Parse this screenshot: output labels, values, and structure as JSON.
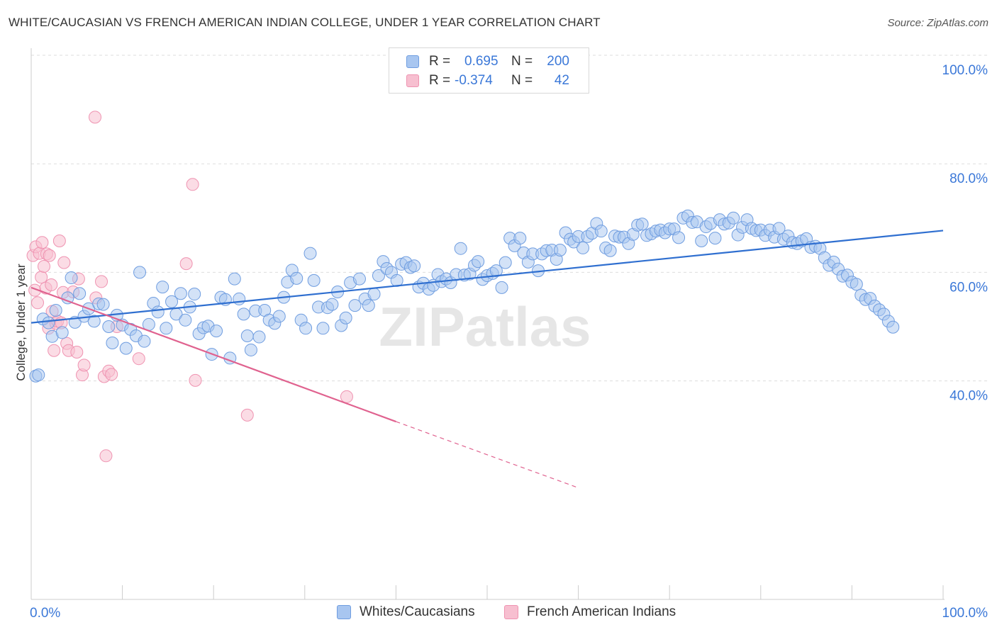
{
  "title": "WHITE/CAUCASIAN VS FRENCH AMERICAN INDIAN COLLEGE, UNDER 1 YEAR CORRELATION CHART",
  "source": "Source: ZipAtlas.com",
  "watermark": "ZIPatlas",
  "legend": {
    "rows": [
      {
        "r_label": "R =",
        "r_value": "0.695",
        "n_label": "N =",
        "n_value": "200"
      },
      {
        "r_label": "R =",
        "r_value": "-0.374",
        "n_label": "N =",
        "n_value": "42"
      }
    ]
  },
  "bottom_legend": [
    "Whites/Caucasians",
    "French American Indians"
  ],
  "colors": {
    "blue_fill": "#a8c6f0",
    "blue_stroke": "#6f9de0",
    "blue_line": "#2f6fd0",
    "pink_fill": "#f7bfd0",
    "pink_stroke": "#ef93b1",
    "pink_line": "#e0628f",
    "tick_label": "#3b78d8",
    "grid": "#dddddd"
  },
  "chart_data": {
    "type": "scatter",
    "title": "WHITE/CAUCASIAN VS FRENCH AMERICAN INDIAN COLLEGE, UNDER 1 YEAR CORRELATION CHART",
    "xlabel": "",
    "ylabel": "College, Under 1 year",
    "xlim": [
      0,
      100
    ],
    "ylim": [
      20,
      100
    ],
    "x_tick_labels": [
      "0.0%",
      "100.0%"
    ],
    "y_ticks": [
      40,
      60,
      80,
      100
    ],
    "y_tick_labels": [
      "40.0%",
      "60.0%",
      "80.0%",
      "100.0%"
    ],
    "grid": true,
    "legend_position": "top-center",
    "series": [
      {
        "name": "Whites/Caucasians",
        "r": 0.695,
        "n": 200,
        "trend": {
          "x0": 0,
          "y0": 50.7,
          "x1": 100,
          "y1": 67.7
        },
        "points": [
          [
            0.5,
            40.9
          ],
          [
            0.8,
            41.1
          ],
          [
            1.3,
            51.4
          ],
          [
            1.9,
            50.7
          ],
          [
            2.3,
            48.2
          ],
          [
            2.7,
            53.0
          ],
          [
            3.4,
            48.9
          ],
          [
            4.0,
            55.3
          ],
          [
            4.4,
            59.0
          ],
          [
            4.8,
            50.8
          ],
          [
            5.3,
            56.1
          ],
          [
            5.8,
            51.9
          ],
          [
            6.3,
            53.3
          ],
          [
            6.9,
            51.0
          ],
          [
            7.4,
            54.2
          ],
          [
            7.9,
            54.1
          ],
          [
            8.5,
            50.0
          ],
          [
            8.9,
            47.0
          ],
          [
            9.4,
            52.1
          ],
          [
            10.0,
            50.3
          ],
          [
            10.4,
            46.0
          ],
          [
            10.9,
            49.5
          ],
          [
            11.5,
            48.3
          ],
          [
            11.9,
            60.0
          ],
          [
            12.4,
            47.3
          ],
          [
            12.9,
            50.4
          ],
          [
            13.4,
            54.3
          ],
          [
            13.9,
            52.7
          ],
          [
            14.4,
            57.3
          ],
          [
            14.8,
            49.7
          ],
          [
            15.4,
            54.6
          ],
          [
            15.9,
            52.3
          ],
          [
            16.4,
            56.1
          ],
          [
            16.9,
            51.2
          ],
          [
            17.4,
            53.6
          ],
          [
            17.9,
            56.0
          ],
          [
            18.4,
            48.7
          ],
          [
            18.9,
            49.8
          ],
          [
            19.4,
            50.1
          ],
          [
            19.8,
            44.9
          ],
          [
            20.3,
            49.2
          ],
          [
            20.8,
            55.4
          ],
          [
            21.3,
            55.0
          ],
          [
            21.8,
            44.2
          ],
          [
            22.3,
            58.8
          ],
          [
            22.8,
            55.1
          ],
          [
            23.3,
            52.3
          ],
          [
            23.7,
            48.3
          ],
          [
            24.1,
            45.7
          ],
          [
            24.6,
            52.9
          ],
          [
            25.0,
            48.1
          ],
          [
            25.6,
            53.0
          ],
          [
            26.1,
            51.2
          ],
          [
            26.7,
            50.6
          ],
          [
            27.2,
            51.9
          ],
          [
            27.7,
            55.4
          ],
          [
            28.1,
            58.2
          ],
          [
            28.6,
            60.4
          ],
          [
            29.1,
            58.9
          ],
          [
            29.6,
            51.2
          ],
          [
            30.1,
            49.7
          ],
          [
            30.6,
            63.5
          ],
          [
            31.0,
            58.5
          ],
          [
            31.5,
            53.6
          ],
          [
            32.0,
            49.7
          ],
          [
            32.5,
            53.5
          ],
          [
            33.0,
            54.1
          ],
          [
            33.6,
            56.4
          ],
          [
            34.0,
            50.2
          ],
          [
            34.5,
            51.6
          ],
          [
            35.0,
            58.1
          ],
          [
            35.5,
            53.9
          ],
          [
            36.0,
            58.8
          ],
          [
            36.6,
            55.1
          ],
          [
            37.0,
            53.9
          ],
          [
            37.6,
            56.0
          ],
          [
            38.1,
            59.4
          ],
          [
            38.6,
            62.0
          ],
          [
            39.0,
            60.7
          ],
          [
            39.5,
            60.0
          ],
          [
            40.1,
            58.5
          ],
          [
            40.6,
            61.5
          ],
          [
            41.1,
            61.8
          ],
          [
            41.6,
            60.9
          ],
          [
            42.0,
            61.2
          ],
          [
            42.5,
            57.3
          ],
          [
            43.0,
            58.0
          ],
          [
            43.6,
            56.9
          ],
          [
            44.1,
            57.6
          ],
          [
            44.6,
            59.6
          ],
          [
            45.0,
            58.3
          ],
          [
            45.5,
            58.8
          ],
          [
            46.0,
            58.1
          ],
          [
            46.6,
            59.6
          ],
          [
            47.1,
            64.4
          ],
          [
            47.5,
            59.5
          ],
          [
            48.1,
            59.7
          ],
          [
            48.6,
            61.3
          ],
          [
            49.0,
            62.0
          ],
          [
            49.5,
            58.7
          ],
          [
            50.0,
            59.4
          ],
          [
            50.6,
            59.8
          ],
          [
            51.0,
            60.3
          ],
          [
            51.6,
            57.2
          ],
          [
            52.0,
            61.8
          ],
          [
            52.5,
            66.3
          ],
          [
            53.0,
            64.9
          ],
          [
            53.6,
            66.3
          ],
          [
            54.0,
            63.6
          ],
          [
            54.5,
            61.9
          ],
          [
            55.0,
            63.4
          ],
          [
            55.6,
            60.3
          ],
          [
            56.0,
            63.4
          ],
          [
            56.5,
            64.0
          ],
          [
            57.1,
            64.1
          ],
          [
            57.6,
            62.4
          ],
          [
            58.0,
            64.1
          ],
          [
            58.6,
            67.3
          ],
          [
            59.1,
            66.1
          ],
          [
            59.5,
            65.6
          ],
          [
            60.0,
            66.6
          ],
          [
            60.5,
            64.5
          ],
          [
            61.0,
            66.6
          ],
          [
            61.5,
            67.2
          ],
          [
            62.0,
            69.0
          ],
          [
            62.5,
            67.6
          ],
          [
            63.0,
            64.5
          ],
          [
            63.5,
            64.0
          ],
          [
            64.0,
            66.7
          ],
          [
            64.5,
            66.5
          ],
          [
            65.0,
            66.5
          ],
          [
            65.5,
            65.3
          ],
          [
            66.0,
            67.0
          ],
          [
            66.5,
            68.7
          ],
          [
            67.0,
            68.9
          ],
          [
            67.5,
            66.8
          ],
          [
            68.0,
            67.1
          ],
          [
            68.5,
            67.6
          ],
          [
            69.0,
            67.8
          ],
          [
            69.5,
            67.3
          ],
          [
            70.0,
            68.0
          ],
          [
            70.5,
            68.0
          ],
          [
            71.0,
            66.4
          ],
          [
            71.5,
            70.0
          ],
          [
            72.0,
            70.4
          ],
          [
            72.5,
            69.2
          ],
          [
            73.0,
            69.3
          ],
          [
            73.5,
            65.8
          ],
          [
            74.0,
            68.4
          ],
          [
            74.5,
            69.0
          ],
          [
            75.0,
            66.3
          ],
          [
            75.5,
            69.7
          ],
          [
            76.0,
            68.9
          ],
          [
            76.5,
            69.1
          ],
          [
            77.0,
            70.0
          ],
          [
            77.5,
            66.9
          ],
          [
            78.0,
            68.3
          ],
          [
            78.5,
            69.7
          ],
          [
            79.0,
            68.1
          ],
          [
            79.5,
            67.7
          ],
          [
            80.0,
            67.8
          ],
          [
            80.5,
            66.8
          ],
          [
            81.0,
            67.8
          ],
          [
            81.5,
            66.5
          ],
          [
            82.0,
            68.1
          ],
          [
            82.5,
            66.1
          ],
          [
            83.0,
            66.7
          ],
          [
            83.5,
            65.5
          ],
          [
            84.0,
            65.3
          ],
          [
            84.5,
            65.8
          ],
          [
            85.0,
            66.2
          ],
          [
            85.5,
            64.6
          ],
          [
            86.0,
            64.8
          ],
          [
            86.5,
            64.4
          ],
          [
            87.0,
            62.7
          ],
          [
            87.5,
            61.3
          ],
          [
            88.0,
            61.9
          ],
          [
            88.5,
            60.6
          ],
          [
            89.0,
            59.3
          ],
          [
            89.5,
            59.5
          ],
          [
            90.0,
            58.2
          ],
          [
            90.5,
            57.8
          ],
          [
            91.0,
            55.8
          ],
          [
            91.5,
            55.0
          ],
          [
            92.0,
            55.2
          ],
          [
            92.5,
            53.8
          ],
          [
            93.0,
            53.1
          ],
          [
            93.5,
            52.3
          ],
          [
            94.0,
            51.0
          ],
          [
            94.5,
            49.9
          ]
        ]
      },
      {
        "name": "French American Indians",
        "r": -0.374,
        "n": 42,
        "trend": {
          "x0": 0,
          "y0": 57.2,
          "x1": 40,
          "y1": 32.5
        },
        "trend_dashed_end": {
          "x": 60,
          "y": 20.3
        },
        "points": [
          [
            0.2,
            63.1
          ],
          [
            0.4,
            56.7
          ],
          [
            0.5,
            64.7
          ],
          [
            0.7,
            54.4
          ],
          [
            0.9,
            63.5
          ],
          [
            1.1,
            59.1
          ],
          [
            1.2,
            65.5
          ],
          [
            1.4,
            61.1
          ],
          [
            1.6,
            57.1
          ],
          [
            1.7,
            63.4
          ],
          [
            1.9,
            49.7
          ],
          [
            2.0,
            63.1
          ],
          [
            2.2,
            57.7
          ],
          [
            2.3,
            52.8
          ],
          [
            2.5,
            45.6
          ],
          [
            2.7,
            50.6
          ],
          [
            2.9,
            51.0
          ],
          [
            3.1,
            65.8
          ],
          [
            3.3,
            50.7
          ],
          [
            3.5,
            56.3
          ],
          [
            3.6,
            61.8
          ],
          [
            3.9,
            46.9
          ],
          [
            4.1,
            45.6
          ],
          [
            4.6,
            56.4
          ],
          [
            5.0,
            45.3
          ],
          [
            5.2,
            58.8
          ],
          [
            5.6,
            41.1
          ],
          [
            5.8,
            42.9
          ],
          [
            7.0,
            88.6
          ],
          [
            7.1,
            55.3
          ],
          [
            7.7,
            58.3
          ],
          [
            8.0,
            40.8
          ],
          [
            8.2,
            26.2
          ],
          [
            8.5,
            41.8
          ],
          [
            8.8,
            41.2
          ],
          [
            9.4,
            50.0
          ],
          [
            11.8,
            44.1
          ],
          [
            17.0,
            61.6
          ],
          [
            17.7,
            76.2
          ],
          [
            18.0,
            40.1
          ],
          [
            23.7,
            33.7
          ],
          [
            34.6,
            37.1
          ]
        ]
      }
    ]
  }
}
